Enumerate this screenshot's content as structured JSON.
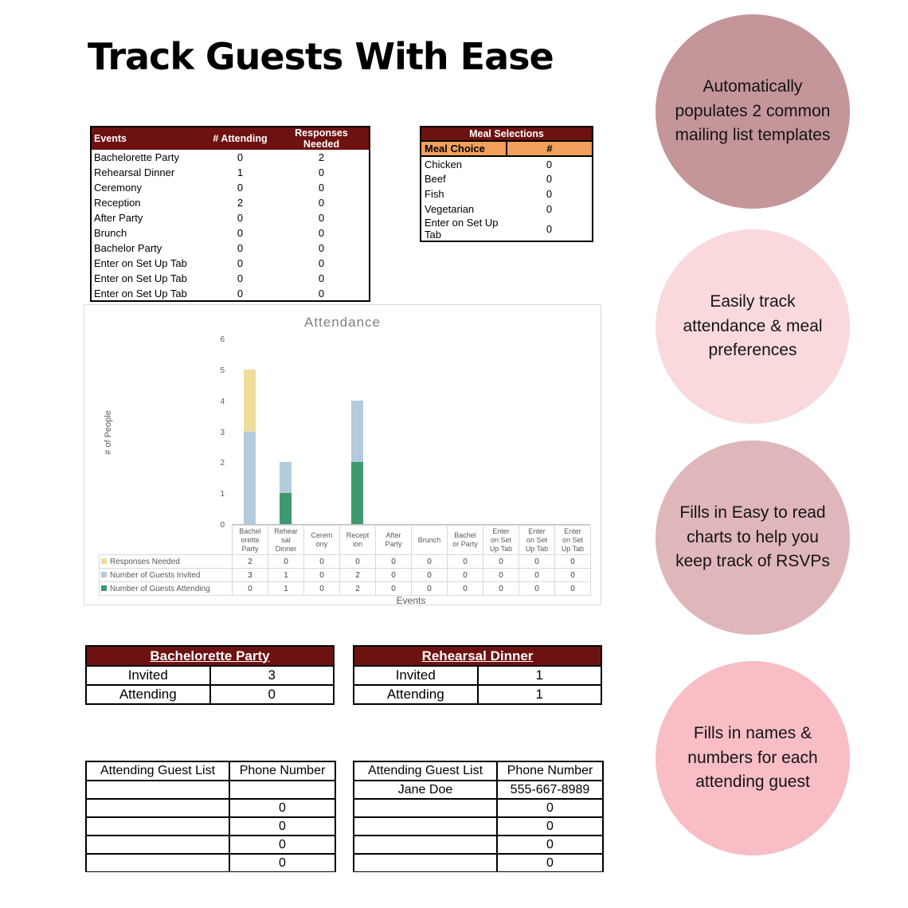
{
  "page": {
    "title": "Track Guests With Ease"
  },
  "events_table": {
    "headers": [
      "Events",
      "# Attending",
      "Responses Needed"
    ],
    "rows": [
      [
        "Bachelorette Party",
        "0",
        "2"
      ],
      [
        "Rehearsal Dinner",
        "1",
        "0"
      ],
      [
        "Ceremony",
        "0",
        "0"
      ],
      [
        "Reception",
        "2",
        "0"
      ],
      [
        "After Party",
        "0",
        "0"
      ],
      [
        "Brunch",
        "0",
        "0"
      ],
      [
        "Bachelor Party",
        "0",
        "0"
      ],
      [
        "Enter on Set Up Tab",
        "0",
        "0"
      ],
      [
        "Enter on Set Up Tab",
        "0",
        "0"
      ],
      [
        "Enter on Set Up Tab",
        "0",
        "0"
      ]
    ]
  },
  "meal_table": {
    "title": "Meal Selections",
    "headers": [
      "Meal Choice",
      "#"
    ],
    "rows": [
      [
        "Chicken",
        "0"
      ],
      [
        "Beef",
        "0"
      ],
      [
        "Fish",
        "0"
      ],
      [
        "Vegetarian",
        "0"
      ],
      [
        "Enter on Set Up Tab",
        "0"
      ]
    ]
  },
  "chart_data": {
    "type": "bar",
    "stacked": true,
    "title": "Attendance",
    "xlabel": "Events",
    "ylabel": "# of People",
    "ylim": [
      0,
      6
    ],
    "yticks": [
      0,
      1,
      2,
      3,
      4,
      5,
      6
    ],
    "grid": false,
    "legend_position": "table-left",
    "categories": [
      "Bachelorette Party",
      "Rehearsal Dinner",
      "Ceremony",
      "Reception",
      "After Party",
      "Brunch",
      "Bachelor Party",
      "Enter on Set Up Tab",
      "Enter on Set Up Tab",
      "Enter on Set Up Tab"
    ],
    "category_labels": [
      "Bachel\norette\nParty",
      "Rehear\nsal\nDinner",
      "Cerem\nony",
      "Recept\nion",
      "After\nParty",
      "Brunch",
      "Bachel\nor Party",
      "Enter\non Set\nUp Tab",
      "Enter\non Set\nUp Tab",
      "Enter\non Set\nUp Tab"
    ],
    "series": [
      {
        "name": "Responses Needed",
        "color": "#EFDD9B",
        "values": [
          2,
          0,
          0,
          0,
          0,
          0,
          0,
          0,
          0,
          0
        ]
      },
      {
        "name": "Number of Guests Invited",
        "color": "#B4CBDC",
        "values": [
          3,
          1,
          0,
          2,
          0,
          0,
          0,
          0,
          0,
          0
        ]
      },
      {
        "name": "Number of Guests Attending",
        "color": "#3E9870",
        "values": [
          0,
          1,
          0,
          2,
          0,
          0,
          0,
          0,
          0,
          0
        ]
      }
    ]
  },
  "summary_tables": [
    {
      "title": "Bachelorette Party",
      "rows": [
        [
          "Invited",
          "3"
        ],
        [
          "Attending",
          "0"
        ]
      ]
    },
    {
      "title": "Rehearsal Dinner",
      "rows": [
        [
          "Invited",
          "1"
        ],
        [
          "Attending",
          "1"
        ]
      ]
    }
  ],
  "guest_tables": [
    {
      "headers": [
        "Attending Guest List",
        "Phone Number"
      ],
      "rows": [
        [
          "",
          ""
        ],
        [
          "",
          "0"
        ],
        [
          "",
          "0"
        ],
        [
          "",
          "0"
        ],
        [
          "",
          "0"
        ]
      ]
    },
    {
      "headers": [
        "Attending Guest List",
        "Phone Number"
      ],
      "rows": [
        [
          "Jane Doe",
          "555-667-8989"
        ],
        [
          "",
          "0"
        ],
        [
          "",
          "0"
        ],
        [
          "",
          "0"
        ],
        [
          "",
          "0"
        ]
      ]
    }
  ],
  "bubbles": [
    {
      "text": "Automatically populates 2 common mailing list templates",
      "color": "#C49599"
    },
    {
      "text": "Easily track attendance & meal preferences",
      "color": "#F9D9DC"
    },
    {
      "text": "Fills in Easy to read charts to help you keep track of RSVPs",
      "color": "#DFB6BA"
    },
    {
      "text": "Fills in names & numbers for each attending guest",
      "color": "#F8BDC5"
    }
  ],
  "colors": {
    "header_maroon": "#6E1111",
    "subheader_orange": "#F2A05C",
    "title_text": "#000000"
  }
}
